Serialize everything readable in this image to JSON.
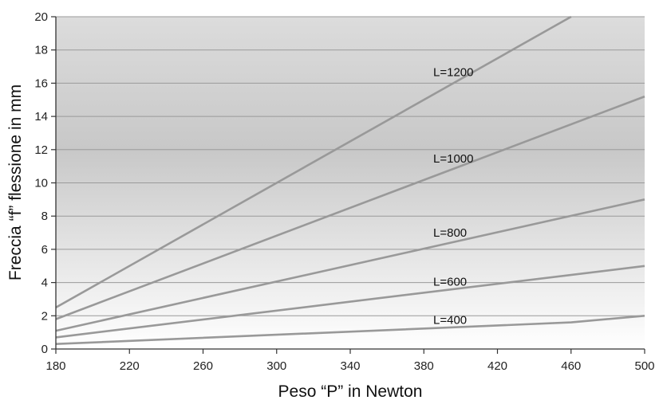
{
  "chart_data": {
    "type": "line",
    "xlabel": "Peso “P” in Newton",
    "ylabel": "Freccia “f” flessione in mm",
    "xlim": [
      180,
      500
    ],
    "ylim": [
      0,
      20
    ],
    "x_ticks": [
      "180",
      "220",
      "260",
      "300",
      "340",
      "380",
      "420",
      "460",
      "500"
    ],
    "y_ticks": [
      "0",
      "2",
      "4",
      "6",
      "8",
      "10",
      "12",
      "14",
      "16",
      "18",
      "20"
    ],
    "grid": true,
    "line_color": "#999999",
    "series": [
      {
        "name": "L=400",
        "x": [
          180,
          460,
          500
        ],
        "y": [
          0.3,
          1.6,
          2.0
        ]
      },
      {
        "name": "L=600",
        "x": [
          180,
          500
        ],
        "y": [
          0.7,
          5.0
        ]
      },
      {
        "name": "L=800",
        "x": [
          180,
          500
        ],
        "y": [
          1.1,
          9.0
        ]
      },
      {
        "name": "L=1000",
        "x": [
          180,
          500
        ],
        "y": [
          1.8,
          15.2
        ]
      },
      {
        "name": "L=1200",
        "x": [
          180,
          460
        ],
        "y": [
          2.5,
          20.0
        ]
      }
    ]
  }
}
